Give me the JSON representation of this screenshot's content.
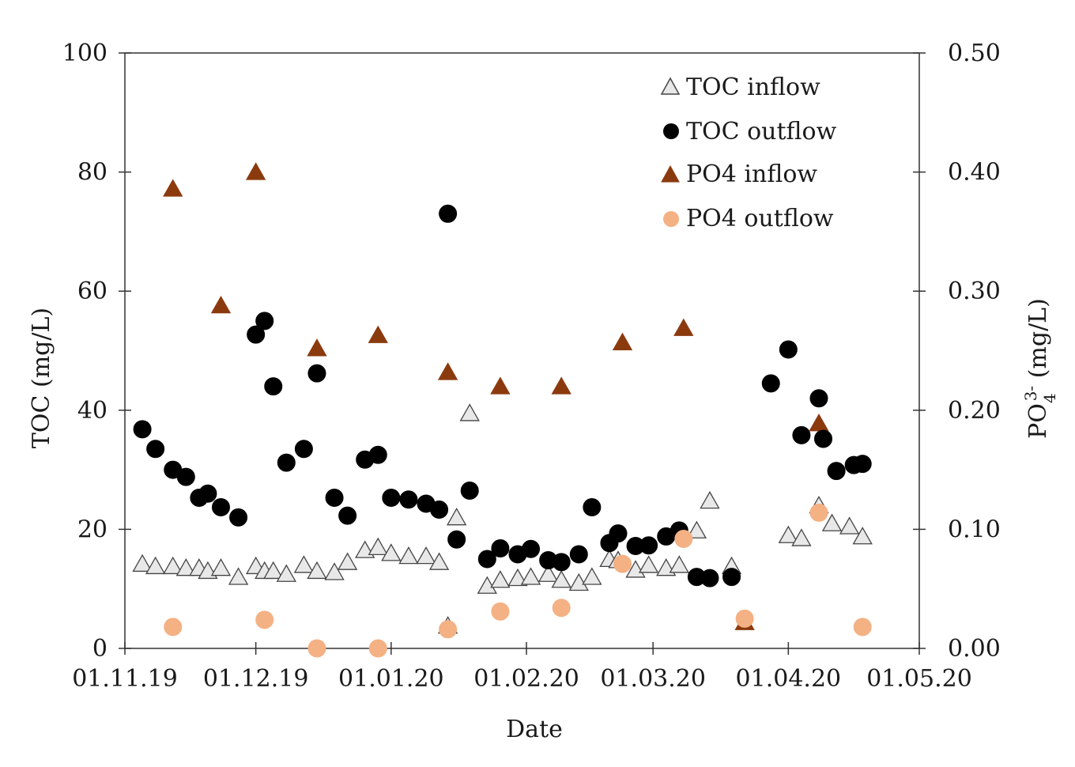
{
  "chart_data": {
    "type": "scatter",
    "title": "",
    "xlabel": "Date",
    "ylabel_left": "TOC (mg/L)",
    "ylabel_right_main": "PO",
    "ylabel_right_sub": "4",
    "ylabel_right_sup": "3-",
    "ylabel_right_tail": " (mg/L)",
    "x_unit": "days since 01.11.19",
    "xlim": [
      0,
      182
    ],
    "x_ticks": [
      {
        "value": 0,
        "label": "01.11.19"
      },
      {
        "value": 30,
        "label": "01.12.19"
      },
      {
        "value": 61,
        "label": "01.01.20"
      },
      {
        "value": 92,
        "label": "01.02.20"
      },
      {
        "value": 121,
        "label": "01.03.20"
      },
      {
        "value": 152,
        "label": "01.04.20"
      },
      {
        "value": 182,
        "label": "01.05.20"
      }
    ],
    "ylim_left": [
      0,
      100
    ],
    "y_ticks_left": [
      {
        "value": 0,
        "label": "0"
      },
      {
        "value": 20,
        "label": "20"
      },
      {
        "value": 40,
        "label": "40"
      },
      {
        "value": 60,
        "label": "60"
      },
      {
        "value": 80,
        "label": "80"
      },
      {
        "value": 100,
        "label": "100"
      }
    ],
    "ylim_right": [
      0,
      0.5
    ],
    "y_ticks_right": [
      {
        "value": 0.0,
        "label": "0.00"
      },
      {
        "value": 0.1,
        "label": "0.10"
      },
      {
        "value": 0.2,
        "label": "0.20"
      },
      {
        "value": 0.3,
        "label": "0.30"
      },
      {
        "value": 0.4,
        "label": "0.40"
      },
      {
        "value": 0.5,
        "label": "0.50"
      }
    ],
    "legend_position": "top-right",
    "series": [
      {
        "name": "TOC inflow",
        "axis": "left",
        "marker": "triangle",
        "fill": "#e8e8e8",
        "stroke": "#444444",
        "points": [
          [
            4,
            14.2
          ],
          [
            7,
            13.8
          ],
          [
            11,
            13.8
          ],
          [
            14,
            13.5
          ],
          [
            17,
            13.5
          ],
          [
            19,
            13.0
          ],
          [
            22,
            13.5
          ],
          [
            26,
            12.0
          ],
          [
            30,
            13.8
          ],
          [
            32,
            13.0
          ],
          [
            34,
            13.0
          ],
          [
            37,
            12.5
          ],
          [
            41,
            14.0
          ],
          [
            44,
            13.0
          ],
          [
            48,
            12.8
          ],
          [
            51,
            14.5
          ],
          [
            55,
            16.5
          ],
          [
            58,
            17.0
          ],
          [
            61,
            16.0
          ],
          [
            65,
            15.5
          ],
          [
            69,
            15.5
          ],
          [
            72,
            14.5
          ],
          [
            74,
            3.8
          ],
          [
            76,
            22.0
          ],
          [
            79,
            39.5
          ],
          [
            83,
            10.5
          ],
          [
            86,
            11.5
          ],
          [
            90,
            11.8
          ],
          [
            93,
            12.0
          ],
          [
            97,
            12.5
          ],
          [
            100,
            11.5
          ],
          [
            104,
            11.0
          ],
          [
            107,
            12.0
          ],
          [
            111,
            15.0
          ],
          [
            113,
            14.8
          ],
          [
            117,
            13.2
          ],
          [
            120,
            14.0
          ],
          [
            124,
            13.5
          ],
          [
            127,
            14.0
          ],
          [
            131,
            19.8
          ],
          [
            134,
            24.8
          ],
          [
            139,
            13.8
          ],
          [
            152,
            19.0
          ],
          [
            155,
            18.5
          ],
          [
            159,
            24.0
          ],
          [
            162,
            21.0
          ],
          [
            166,
            20.5
          ],
          [
            169,
            18.8
          ]
        ]
      },
      {
        "name": "TOC outflow",
        "axis": "left",
        "marker": "circle",
        "fill": "#000000",
        "stroke": "#000000",
        "points": [
          [
            4,
            36.8
          ],
          [
            7,
            33.5
          ],
          [
            11,
            30.0
          ],
          [
            14,
            28.8
          ],
          [
            17,
            25.3
          ],
          [
            19,
            26.0
          ],
          [
            22,
            23.7
          ],
          [
            26,
            22.0
          ],
          [
            30,
            52.7
          ],
          [
            32,
            55.0
          ],
          [
            34,
            44.0
          ],
          [
            37,
            31.2
          ],
          [
            41,
            33.5
          ],
          [
            44,
            46.2
          ],
          [
            48,
            25.3
          ],
          [
            51,
            22.3
          ],
          [
            55,
            31.7
          ],
          [
            58,
            32.5
          ],
          [
            61,
            25.3
          ],
          [
            65,
            25.0
          ],
          [
            69,
            24.3
          ],
          [
            72,
            23.3
          ],
          [
            74,
            73.0
          ],
          [
            76,
            18.3
          ],
          [
            79,
            26.5
          ],
          [
            83,
            15.0
          ],
          [
            86,
            16.8
          ],
          [
            90,
            15.8
          ],
          [
            93,
            16.7
          ],
          [
            97,
            14.8
          ],
          [
            100,
            14.5
          ],
          [
            104,
            15.8
          ],
          [
            107,
            23.7
          ],
          [
            111,
            17.7
          ],
          [
            113,
            19.3
          ],
          [
            117,
            17.2
          ],
          [
            120,
            17.3
          ],
          [
            124,
            18.8
          ],
          [
            127,
            19.8
          ],
          [
            131,
            12.0
          ],
          [
            134,
            11.8
          ],
          [
            139,
            12.0
          ],
          [
            148,
            44.5
          ],
          [
            152,
            50.2
          ],
          [
            155,
            35.8
          ],
          [
            159,
            42.0
          ],
          [
            160,
            35.2
          ],
          [
            163,
            29.8
          ],
          [
            167,
            30.8
          ],
          [
            169,
            31.0
          ]
        ]
      },
      {
        "name": "PO4 inflow",
        "axis": "right",
        "marker": "triangle",
        "fill": "#8b3a0e",
        "stroke": "#8b3a0e",
        "points": [
          [
            11,
            0.386
          ],
          [
            30,
            0.4
          ],
          [
            22,
            0.288
          ],
          [
            44,
            0.252
          ],
          [
            58,
            0.263
          ],
          [
            74,
            0.232
          ],
          [
            86,
            0.22
          ],
          [
            100,
            0.22
          ],
          [
            114,
            0.257
          ],
          [
            128,
            0.269
          ],
          [
            142,
            0.022
          ],
          [
            159,
            0.189
          ]
        ]
      },
      {
        "name": "PO4 outflow",
        "axis": "right",
        "marker": "circle",
        "fill": "#f4b183",
        "stroke": "#f4b183",
        "points": [
          [
            11,
            0.018
          ],
          [
            32,
            0.024
          ],
          [
            44,
            0.0
          ],
          [
            58,
            0.0
          ],
          [
            74,
            0.016
          ],
          [
            86,
            0.031
          ],
          [
            100,
            0.034
          ],
          [
            114,
            0.071
          ],
          [
            128,
            0.092
          ],
          [
            142,
            0.025
          ],
          [
            159,
            0.114
          ],
          [
            169,
            0.018
          ]
        ]
      }
    ]
  }
}
